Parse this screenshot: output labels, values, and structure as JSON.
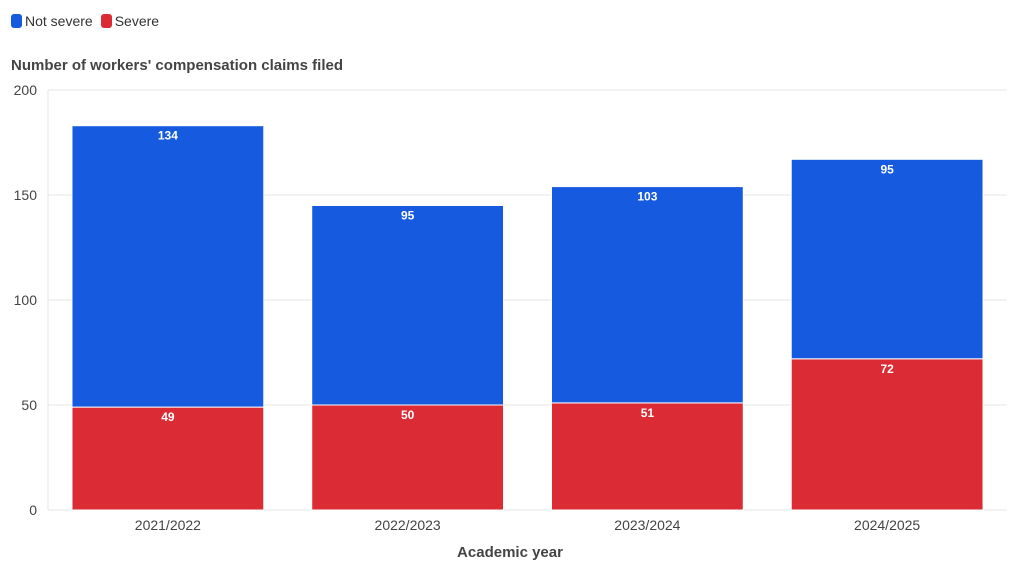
{
  "legend": {
    "items": [
      {
        "label": "Not severe",
        "color": "#165ADF"
      },
      {
        "label": "Severe",
        "color": "#DB2C35"
      }
    ]
  },
  "chart_data": {
    "type": "bar",
    "stacked": true,
    "title": "Number of workers' compensation claims filed",
    "xlabel": "Academic year",
    "ylabel": "",
    "categories": [
      "2021/2022",
      "2022/2023",
      "2023/2024",
      "2024/2025"
    ],
    "series": [
      {
        "name": "Severe",
        "values": [
          49,
          50,
          51,
          72
        ],
        "color": "#DB2C35"
      },
      {
        "name": "Not severe",
        "values": [
          134,
          95,
          103,
          95
        ],
        "color": "#165ADF"
      }
    ],
    "ylim": [
      0,
      200
    ],
    "yticks": [
      0,
      50,
      100,
      150,
      200
    ],
    "grid": true,
    "legend_position": "top-left"
  }
}
